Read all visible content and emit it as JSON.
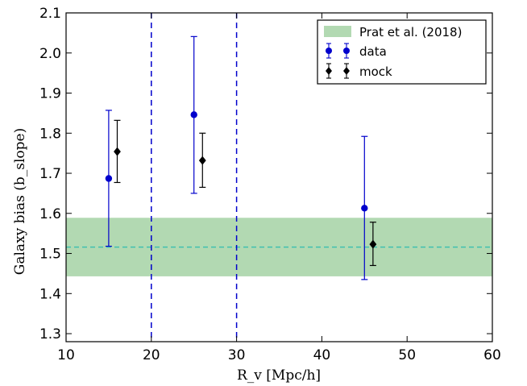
{
  "chart_data": {
    "type": "scatter",
    "xlabel": "R_v [Mpc/h]",
    "ylabel": "Galaxy bias (b_slope)",
    "xlim": [
      10,
      60
    ],
    "ylim": [
      1.28,
      2.1
    ],
    "xticks": [
      "10",
      "20",
      "30",
      "40",
      "50",
      "60"
    ],
    "yticks": [
      "1.3",
      "1.4",
      "1.5",
      "1.6",
      "1.7",
      "1.8",
      "1.9",
      "2.0",
      "2.1"
    ],
    "grid": false,
    "legend_position": "top-right",
    "series": [
      {
        "name": "data",
        "marker": "circle",
        "color": "#0000cc",
        "points": [
          {
            "x": 15,
            "y": 1.687,
            "err_low": 1.518,
            "err_high": 1.857
          },
          {
            "x": 25,
            "y": 1.846,
            "err_low": 1.65,
            "err_high": 2.041
          },
          {
            "x": 45,
            "y": 1.613,
            "err_low": 1.435,
            "err_high": 1.792
          }
        ]
      },
      {
        "name": "mock",
        "marker": "diamond",
        "color": "#000000",
        "points": [
          {
            "x": 16,
            "y": 1.754,
            "err_low": 1.677,
            "err_high": 1.832
          },
          {
            "x": 26,
            "y": 1.732,
            "err_low": 1.665,
            "err_high": 1.8
          },
          {
            "x": 46,
            "y": 1.523,
            "err_low": 1.47,
            "err_high": 1.578
          }
        ]
      }
    ],
    "band": {
      "name": "Prat et al. (2018)",
      "color": "#b2d9b2",
      "y_low": 1.443,
      "y_high": 1.589,
      "center": 1.516,
      "center_color": "#40c0b0"
    },
    "vertical_lines": {
      "x": [
        20,
        30
      ],
      "color": "#0000cc"
    }
  }
}
